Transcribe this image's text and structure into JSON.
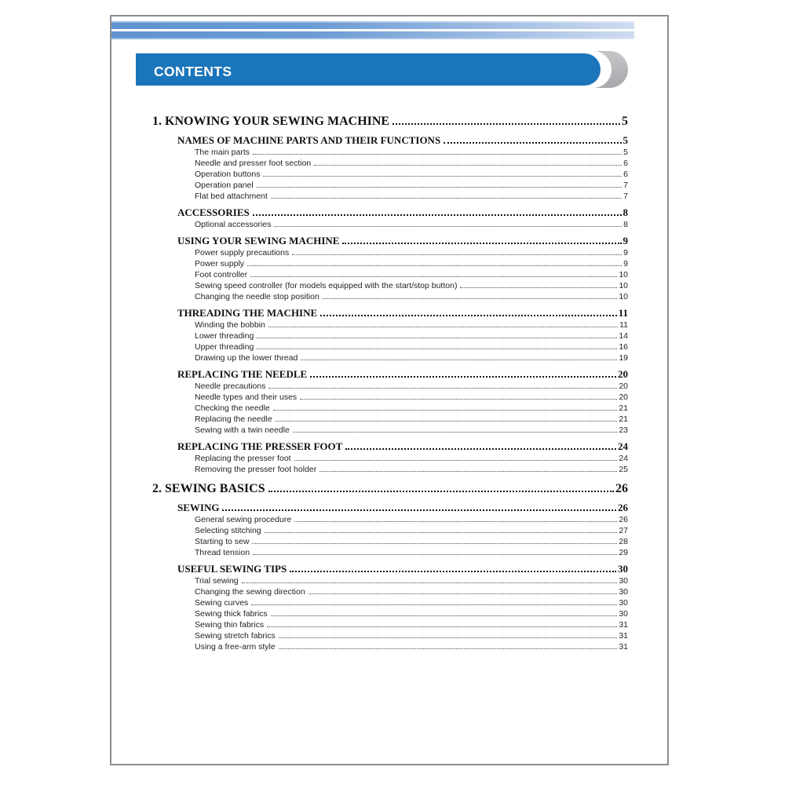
{
  "banner": {
    "title": "CONTENTS"
  },
  "colors": {
    "banner_blue": "#1a75bb",
    "stripe_blue_left": "#6093cf",
    "stripe_blue_right": "#cfdcf0",
    "cap_gray": "#b2b3b6",
    "text": "#1c1c1c"
  },
  "toc": {
    "entries": [
      {
        "level": "chapter",
        "label": "1. KNOWING YOUR SEWING MACHINE",
        "page": "5"
      },
      {
        "level": "section",
        "label": "NAMES OF MACHINE PARTS AND THEIR FUNCTIONS",
        "page": "5"
      },
      {
        "level": "item",
        "label": "The main parts",
        "page": "5"
      },
      {
        "level": "item",
        "label": "Needle and presser foot section",
        "page": "6"
      },
      {
        "level": "item",
        "label": "Operation buttons",
        "page": "6"
      },
      {
        "level": "item",
        "label": "Operation panel",
        "page": "7"
      },
      {
        "level": "item",
        "label": "Flat bed attachment",
        "page": "7"
      },
      {
        "level": "section",
        "label": "ACCESSORIES",
        "page": "8"
      },
      {
        "level": "item",
        "label": "Optional accessories",
        "page": "8"
      },
      {
        "level": "section",
        "label": "USING YOUR SEWING MACHINE",
        "page": "9"
      },
      {
        "level": "item",
        "label": "Power supply precautions",
        "page": "9"
      },
      {
        "level": "item",
        "label": "Power supply",
        "page": "9"
      },
      {
        "level": "item",
        "label": "Foot controller",
        "page": "10"
      },
      {
        "level": "item",
        "label": "Sewing speed controller (for models equipped with the start/stop button)",
        "page": "10"
      },
      {
        "level": "item",
        "label": "Changing the needle stop position",
        "page": "10"
      },
      {
        "level": "section",
        "label": "THREADING THE MACHINE",
        "page": "11"
      },
      {
        "level": "item",
        "label": "Winding the bobbin",
        "page": "11"
      },
      {
        "level": "item",
        "label": "Lower threading",
        "page": "14"
      },
      {
        "level": "item",
        "label": "Upper threading",
        "page": "16"
      },
      {
        "level": "item",
        "label": "Drawing up the lower thread",
        "page": "19"
      },
      {
        "level": "section",
        "label": "REPLACING THE NEEDLE",
        "page": "20"
      },
      {
        "level": "item",
        "label": "Needle precautions",
        "page": "20"
      },
      {
        "level": "item",
        "label": "Needle types and their uses",
        "page": "20"
      },
      {
        "level": "item",
        "label": "Checking the needle",
        "page": "21"
      },
      {
        "level": "item",
        "label": "Replacing the needle",
        "page": "21"
      },
      {
        "level": "item",
        "label": "Sewing with a twin needle",
        "page": "23"
      },
      {
        "level": "section",
        "label": "REPLACING THE PRESSER FOOT",
        "page": "24"
      },
      {
        "level": "item",
        "label": "Replacing the presser foot",
        "page": "24"
      },
      {
        "level": "item",
        "label": "Removing the presser foot holder",
        "page": "25"
      },
      {
        "level": "chapter",
        "label": "2. SEWING BASICS",
        "page": "26"
      },
      {
        "level": "section",
        "label": "SEWING",
        "page": "26"
      },
      {
        "level": "item",
        "label": "General sewing procedure",
        "page": "26"
      },
      {
        "level": "item",
        "label": "Selecting stitching",
        "page": "27"
      },
      {
        "level": "item",
        "label": "Starting to sew",
        "page": "28"
      },
      {
        "level": "item",
        "label": "Thread tension",
        "page": "29"
      },
      {
        "level": "section",
        "label": "USEFUL SEWING TIPS",
        "page": "30"
      },
      {
        "level": "item",
        "label": "Trial sewing",
        "page": "30"
      },
      {
        "level": "item",
        "label": "Changing the sewing direction",
        "page": "30"
      },
      {
        "level": "item",
        "label": "Sewing curves",
        "page": "30"
      },
      {
        "level": "item",
        "label": "Sewing thick fabrics",
        "page": "30"
      },
      {
        "level": "item",
        "label": "Sewing thin fabrics",
        "page": "31"
      },
      {
        "level": "item",
        "label": "Sewing stretch fabrics",
        "page": "31"
      },
      {
        "level": "item",
        "label": "Using a free-arm style",
        "page": "31"
      }
    ]
  }
}
